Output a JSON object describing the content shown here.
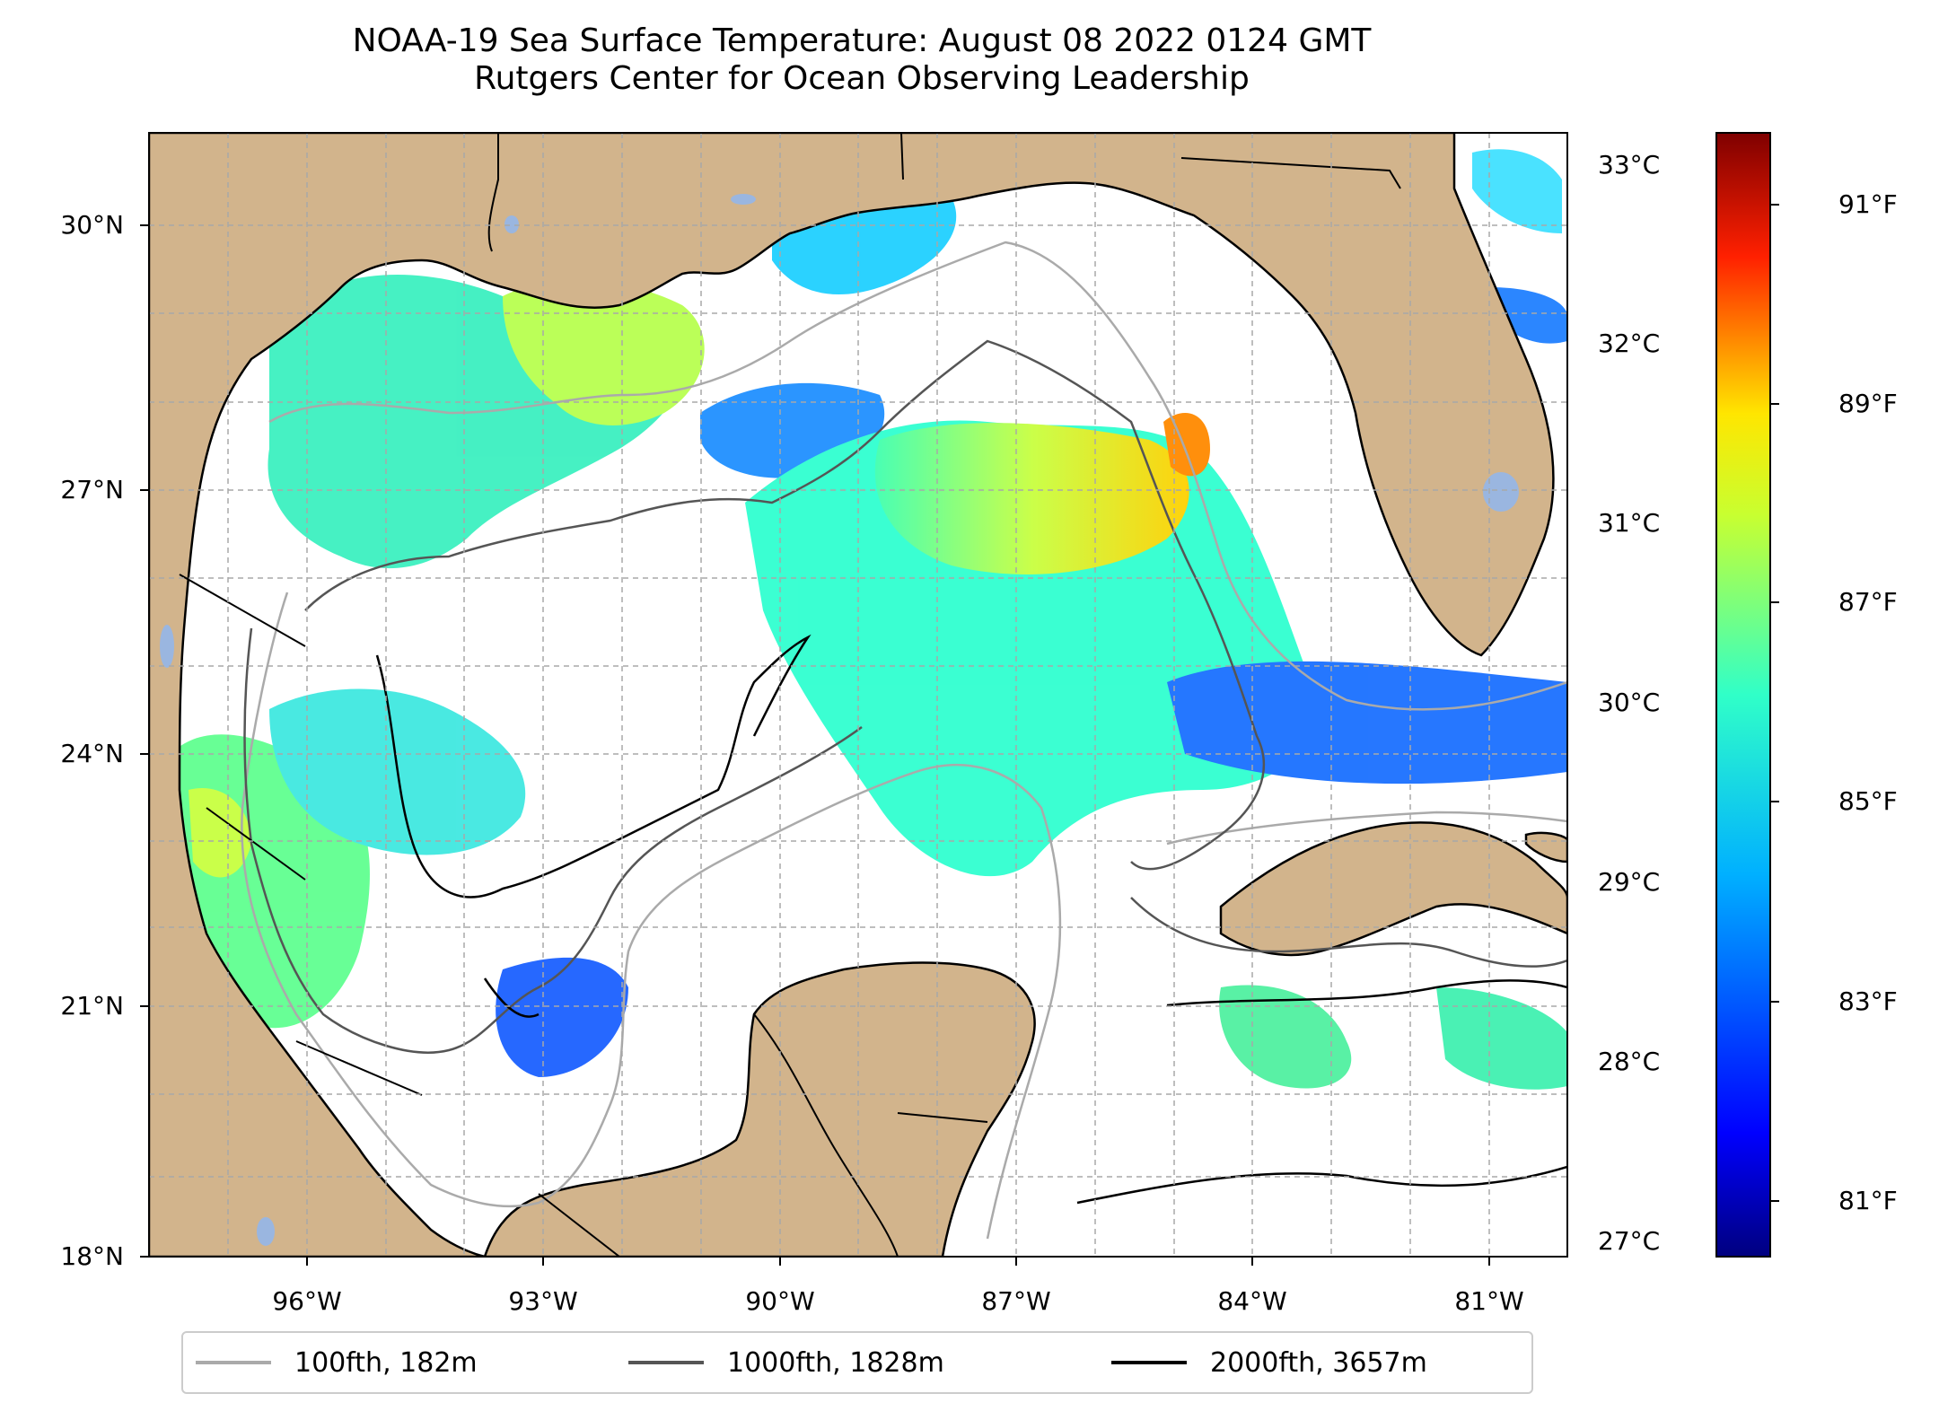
{
  "title": {
    "line1": "NOAA-19 Sea Surface Temperature: August 08 2022 0124 GMT",
    "line2": "Rutgers Center for Ocean Observing Leadership"
  },
  "map": {
    "lat_range": [
      18,
      31
    ],
    "lon_range": [
      -98,
      -80
    ],
    "lat_ticks": [
      {
        "value": 30,
        "label": "30°N"
      },
      {
        "value": 27,
        "label": "27°N"
      },
      {
        "value": 24,
        "label": "24°N"
      },
      {
        "value": 21,
        "label": "21°N"
      },
      {
        "value": 18,
        "label": "18°N"
      }
    ],
    "lon_ticks": [
      {
        "value": -96,
        "label": "96°W"
      },
      {
        "value": -93,
        "label": "93°W"
      },
      {
        "value": -90,
        "label": "90°W"
      },
      {
        "value": -87,
        "label": "87°W"
      },
      {
        "value": -84,
        "label": "84°W"
      },
      {
        "value": -81,
        "label": "81°W"
      }
    ],
    "grid": "dashed",
    "colors": {
      "land": "#d2b48c",
      "ocean_no_data": "#ffffff",
      "lakes": "#9ab6e0",
      "coastline": "#000000"
    }
  },
  "colorbar": {
    "colormap": "jet",
    "celsius_ticks": [
      {
        "value": 33,
        "label": "33°C"
      },
      {
        "value": 32,
        "label": "32°C"
      },
      {
        "value": 31,
        "label": "31°C"
      },
      {
        "value": 30,
        "label": "30°C"
      },
      {
        "value": 29,
        "label": "29°C"
      },
      {
        "value": 28,
        "label": "28°C"
      },
      {
        "value": 27,
        "label": "27°C"
      }
    ],
    "fahrenheit_ticks": [
      {
        "value": 91,
        "label": "91°F"
      },
      {
        "value": 89,
        "label": "89°F"
      },
      {
        "value": 87,
        "label": "87°F"
      },
      {
        "value": 85,
        "label": "85°F"
      },
      {
        "value": 83,
        "label": "83°F"
      },
      {
        "value": 81,
        "label": "81°F"
      }
    ]
  },
  "legend": {
    "items": [
      {
        "label": "100fth, 182m",
        "color": "#aaaaaa"
      },
      {
        "label": "1000fth, 1828m",
        "color": "#555555"
      },
      {
        "label": "2000fth, 3657m",
        "color": "#000000"
      }
    ]
  }
}
